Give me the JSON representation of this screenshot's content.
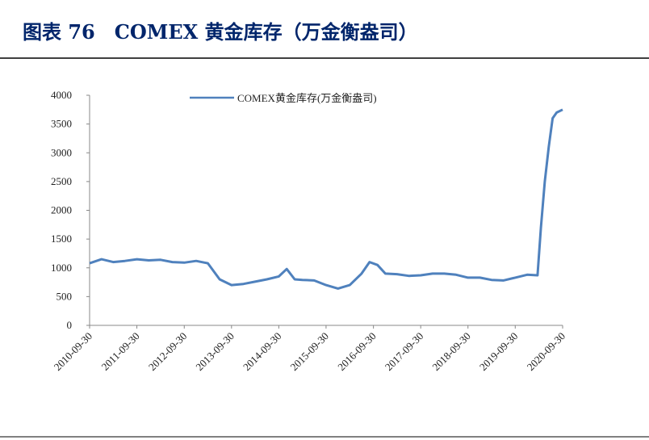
{
  "chart_data": {
    "type": "line",
    "title": "图表 76　COMEX 黄金库存（万金衡盎司）",
    "x": [
      "2010-09-30",
      "2010-12-31",
      "2011-03-31",
      "2011-06-30",
      "2011-09-30",
      "2011-12-31",
      "2012-03-31",
      "2012-06-30",
      "2012-09-30",
      "2012-12-31",
      "2013-03-31",
      "2013-06-30",
      "2013-09-30",
      "2013-12-31",
      "2014-03-31",
      "2014-06-30",
      "2014-09-30",
      "2014-11-30",
      "2015-01-31",
      "2015-03-31",
      "2015-06-30",
      "2015-09-30",
      "2015-12-31",
      "2016-03-31",
      "2016-06-30",
      "2016-08-31",
      "2016-10-31",
      "2016-12-31",
      "2017-03-31",
      "2017-06-30",
      "2017-09-30",
      "2017-12-31",
      "2018-03-31",
      "2018-06-30",
      "2018-09-30",
      "2018-12-31",
      "2019-03-31",
      "2019-06-30",
      "2019-09-30",
      "2019-12-31",
      "2020-03-20",
      "2020-04-15",
      "2020-05-15",
      "2020-06-15",
      "2020-07-15",
      "2020-08-15",
      "2020-09-30"
    ],
    "series": [
      {
        "name": "COMEX黄金库存(万金衡盎司)",
        "color": "#4f81bd",
        "values": [
          1080,
          1150,
          1100,
          1120,
          1150,
          1130,
          1140,
          1100,
          1090,
          1120,
          1080,
          800,
          700,
          720,
          760,
          800,
          850,
          980,
          800,
          790,
          780,
          700,
          640,
          700,
          900,
          1100,
          1050,
          900,
          890,
          860,
          870,
          900,
          900,
          880,
          830,
          830,
          790,
          780,
          830,
          880,
          870,
          1700,
          2500,
          3100,
          3600,
          3700,
          3750
        ]
      }
    ],
    "xlim": [
      "2010-09-30",
      "2020-09-30"
    ],
    "xticks": [
      "2010-09-30",
      "2011-09-30",
      "2012-09-30",
      "2013-09-30",
      "2014-09-30",
      "2015-09-30",
      "2016-09-30",
      "2017-09-30",
      "2018-09-30",
      "2019-09-30",
      "2020-09-30"
    ],
    "ylim": [
      0,
      4000
    ],
    "yticks": [
      0,
      500,
      1000,
      1500,
      2000,
      2500,
      3000,
      3500,
      4000
    ],
    "legend": "top"
  }
}
